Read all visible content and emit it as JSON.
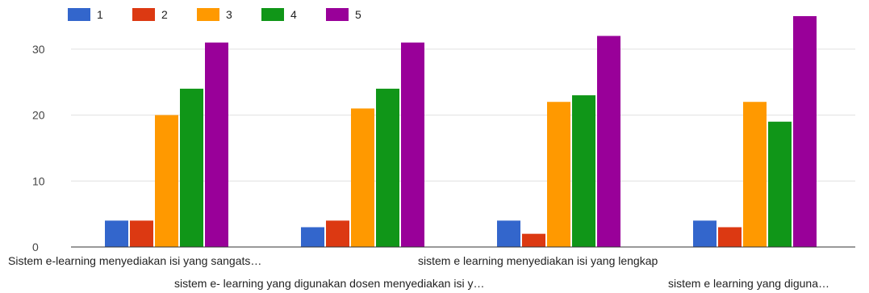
{
  "chart_data": {
    "type": "bar",
    "categories": [
      "Sistem e-learning menyediakan isi yang sangats…",
      "sistem e- learning yang digunakan dosen menyediakan isi y…",
      "sistem e learning menyediakan isi yang lengkap",
      "sistem e learning yang diguna…"
    ],
    "series": [
      {
        "name": "1",
        "color": "#3366cc",
        "values": [
          4,
          3,
          4,
          4
        ]
      },
      {
        "name": "2",
        "color": "#dc3912",
        "values": [
          4,
          4,
          2,
          3
        ]
      },
      {
        "name": "3",
        "color": "#ff9900",
        "values": [
          20,
          21,
          22,
          22
        ]
      },
      {
        "name": "4",
        "color": "#109618",
        "values": [
          24,
          24,
          23,
          19
        ]
      },
      {
        "name": "5",
        "color": "#990099",
        "values": [
          31,
          31,
          32,
          35
        ]
      }
    ],
    "ylim": [
      0,
      35
    ],
    "yticks": [
      0,
      10,
      20,
      30
    ],
    "grid": true,
    "legend_position": "top-left"
  }
}
